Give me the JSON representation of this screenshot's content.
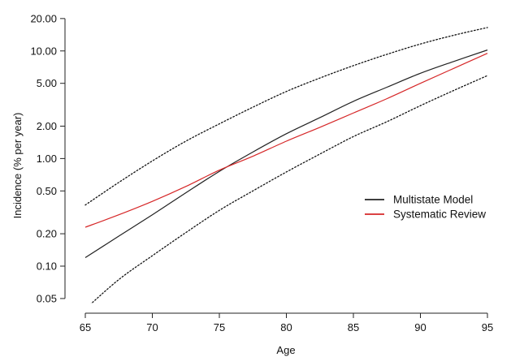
{
  "chart_data": {
    "type": "line",
    "xlabel": "Age",
    "ylabel": "Incidence (% per year)",
    "yscale": "log",
    "xlim": [
      65,
      95
    ],
    "ylim": [
      0.045,
      25
    ],
    "xticks": [
      65,
      70,
      75,
      80,
      85,
      90,
      95
    ],
    "xtick_labels": [
      "65",
      "70",
      "75",
      "80",
      "85",
      "90",
      "95"
    ],
    "yticks": [
      0.05,
      0.1,
      0.2,
      0.5,
      1,
      2,
      5,
      10,
      20
    ],
    "ytick_labels": [
      "0.05",
      "0.10",
      "0.20",
      "0.50",
      "1.00",
      "2.00",
      "5.00",
      "10.00",
      "20.00"
    ],
    "legend_position": "right",
    "series": [
      {
        "name": "Multistate Model",
        "color": "#222222",
        "style": "solid",
        "in_legend": true,
        "x": [
          65,
          67.5,
          70,
          72.5,
          75,
          77.5,
          80,
          82.5,
          85,
          87.5,
          90,
          92.5,
          95
        ],
        "values": [
          0.12,
          0.19,
          0.3,
          0.48,
          0.76,
          1.15,
          1.7,
          2.4,
          3.4,
          4.6,
          6.2,
          8.0,
          10.2
        ]
      },
      {
        "name": "Systematic Review",
        "color": "#d62728",
        "style": "solid",
        "in_legend": true,
        "x": [
          65,
          67.5,
          70,
          72.5,
          75,
          77.5,
          80,
          82.5,
          85,
          87.5,
          90,
          92.5,
          95
        ],
        "values": [
          0.23,
          0.3,
          0.4,
          0.55,
          0.78,
          1.05,
          1.45,
          1.95,
          2.65,
          3.6,
          5.0,
          6.9,
          9.5
        ]
      },
      {
        "name": "",
        "color": "#111111",
        "style": "dotted",
        "in_legend": false,
        "x": [
          65,
          67.5,
          70,
          72.5,
          75,
          77.5,
          80,
          82.5,
          85,
          87.5,
          90,
          92.5,
          95
        ],
        "values": [
          0.37,
          0.6,
          0.95,
          1.45,
          2.1,
          3.0,
          4.2,
          5.6,
          7.3,
          9.3,
          11.6,
          14.0,
          16.5
        ]
      },
      {
        "name": "",
        "color": "#111111",
        "style": "dotted",
        "in_legend": false,
        "x": [
          65,
          67.5,
          70,
          72.5,
          75,
          77.5,
          80,
          82.5,
          85,
          87.5,
          90,
          92.5,
          95
        ],
        "values": [
          0.04,
          0.075,
          0.125,
          0.205,
          0.33,
          0.5,
          0.75,
          1.1,
          1.6,
          2.2,
          3.1,
          4.3,
          5.9
        ]
      }
    ]
  }
}
